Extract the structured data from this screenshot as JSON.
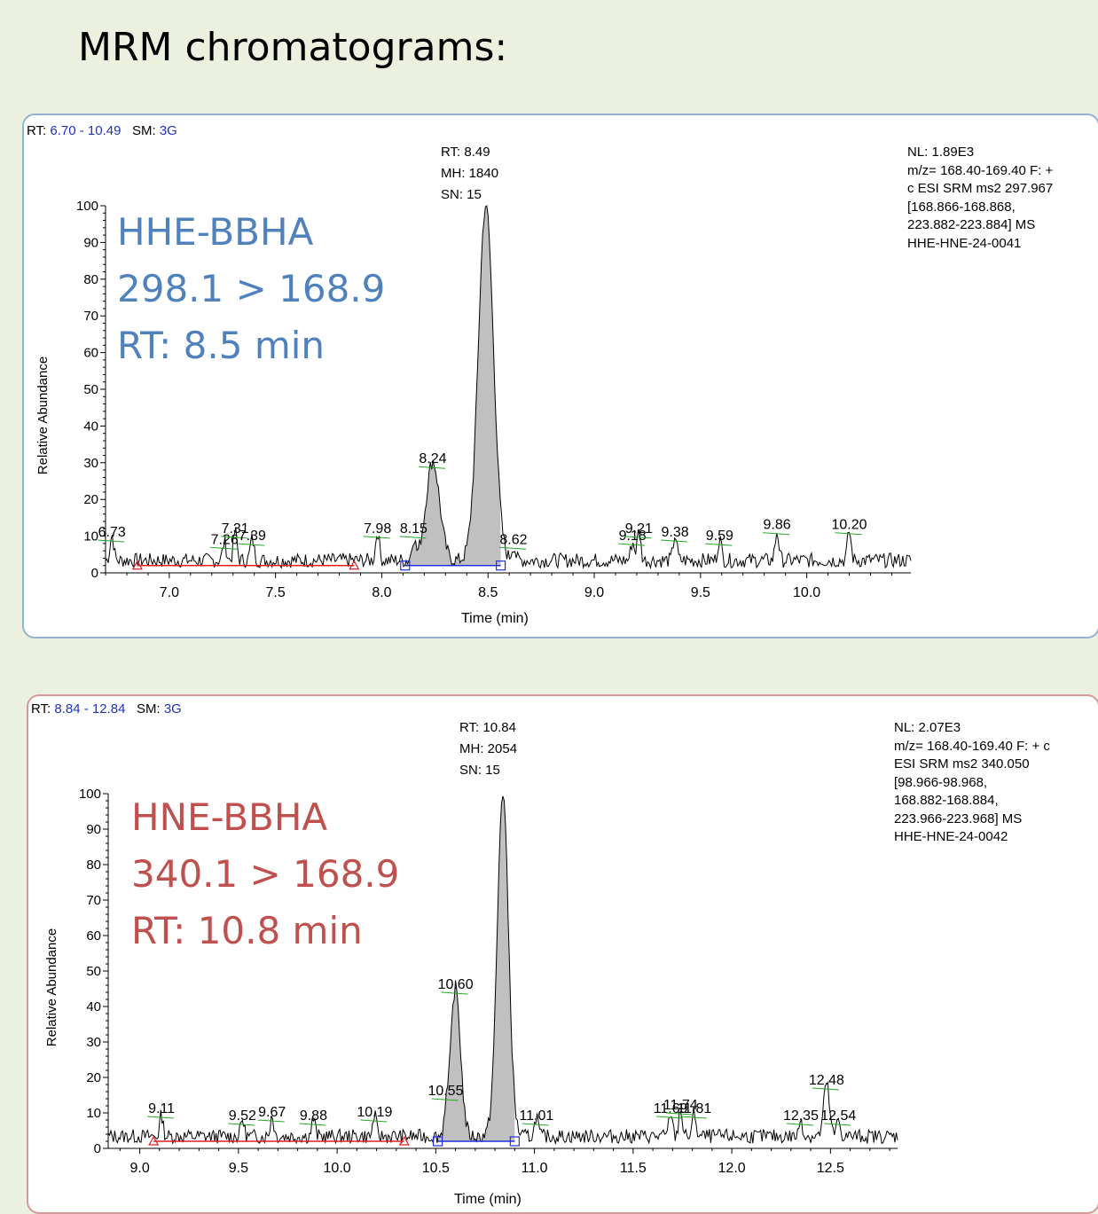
{
  "slide": {
    "title": "MRM chromatograms:"
  },
  "chart_data": [
    {
      "type": "line",
      "header": {
        "rt_label": "RT:",
        "rt_range": "6.70 - 10.49",
        "sm_label": "SM:",
        "sm_value": "3G"
      },
      "info_lines": [
        "NL: 1.89E3",
        "m/z= 168.40-169.40 F: +",
        "c ESI SRM ms2 297.967",
        "[168.866-168.868,",
        "223.882-223.884]  MS",
        "HHE-HNE-24-0041"
      ],
      "overlay_lines": [
        "HHE-BBHA",
        "298.1 > 168.9",
        "RT: 8.5 min"
      ],
      "apex_lines": [
        "RT: 8.49",
        "MH: 1840",
        "SN: 15"
      ],
      "xlabel": "Time (min)",
      "ylabel": "Relative Abundance",
      "xlim": [
        6.7,
        10.49
      ],
      "ylim": [
        0,
        100
      ],
      "x_ticks": [
        "7.0",
        "7.5",
        "8.0",
        "8.5",
        "9.0",
        "9.5",
        "10.0"
      ],
      "y_ticks": [
        "0",
        "10",
        "20",
        "30",
        "40",
        "50",
        "60",
        "70",
        "80",
        "90",
        "100"
      ],
      "peaks": [
        {
          "rt": 8.24,
          "height": 27,
          "width": 0.045
        },
        {
          "rt": 8.49,
          "height": 97,
          "width": 0.05
        }
      ],
      "shaded_range": [
        8.11,
        8.56
      ],
      "baseline_noise": 4,
      "noise_bumps": [
        {
          "rt": 6.73,
          "h": 7
        },
        {
          "rt": 7.26,
          "h": 5
        },
        {
          "rt": 7.31,
          "h": 8
        },
        {
          "rt": 7.39,
          "h": 6
        },
        {
          "rt": 7.98,
          "h": 8
        },
        {
          "rt": 8.15,
          "h": 6
        },
        {
          "rt": 8.62,
          "h": 4
        },
        {
          "rt": 9.18,
          "h": 5
        },
        {
          "rt": 9.21,
          "h": 8
        },
        {
          "rt": 9.38,
          "h": 7
        },
        {
          "rt": 9.59,
          "h": 6
        },
        {
          "rt": 9.86,
          "h": 8
        },
        {
          "rt": 10.2,
          "h": 8
        }
      ],
      "peak_labels": [
        {
          "rt": 6.73,
          "text": "6.73",
          "h": 7
        },
        {
          "rt": 7.26,
          "text": "7.26",
          "h": 5
        },
        {
          "rt": 7.31,
          "text": "7.31",
          "h": 8
        },
        {
          "rt": 7.39,
          "text": "7.39",
          "h": 6
        },
        {
          "rt": 7.98,
          "text": "7.98",
          "h": 8
        },
        {
          "rt": 8.15,
          "text": "8.15",
          "h": 8
        },
        {
          "rt": 8.24,
          "text": "8.24",
          "h": 27
        },
        {
          "rt": 8.62,
          "text": "8.62",
          "h": 5
        },
        {
          "rt": 9.18,
          "text": "9.18",
          "h": 6
        },
        {
          "rt": 9.21,
          "text": "9.21",
          "h": 8
        },
        {
          "rt": 9.38,
          "text": "9.38",
          "h": 7
        },
        {
          "rt": 9.59,
          "text": "9.59",
          "h": 6
        },
        {
          "rt": 9.86,
          "text": "9.86",
          "h": 9
        },
        {
          "rt": 10.2,
          "text": "10.20",
          "h": 9
        }
      ],
      "red_baseline": [
        6.85,
        7.87
      ],
      "blue_baseline": [
        8.11,
        8.56
      ],
      "colors": {
        "trace": "#000000",
        "fill": "#c0c0c0",
        "baseline_red": "#e02020",
        "baseline_blue": "#2030e0",
        "label_tick": "#22aa22"
      }
    },
    {
      "type": "line",
      "header": {
        "rt_label": "RT:",
        "rt_range": "8.84 - 12.84",
        "sm_label": "SM:",
        "sm_value": "3G"
      },
      "info_lines": [
        "NL: 2.07E3",
        "m/z= 168.40-169.40 F: + c",
        "ESI SRM ms2 340.050",
        "[98.966-98.968,",
        "168.882-168.884,",
        "223.966-223.968]  MS",
        "HHE-HNE-24-0042"
      ],
      "overlay_lines": [
        "HNE-BBHA",
        "340.1 > 168.9",
        "RT: 10.8 min"
      ],
      "apex_lines": [
        "RT: 10.84",
        "MH: 2054",
        "SN: 15"
      ],
      "xlabel": "Time (min)",
      "ylabel": "Relative Abundance",
      "xlim": [
        8.84,
        12.84
      ],
      "ylim": [
        0,
        100
      ],
      "x_ticks": [
        "9.0",
        "9.5",
        "10.0",
        "10.5",
        "11.0",
        "11.5",
        "12.0",
        "12.5"
      ],
      "y_ticks": [
        "0",
        "10",
        "20",
        "30",
        "40",
        "50",
        "60",
        "70",
        "80",
        "90",
        "100"
      ],
      "peaks": [
        {
          "rt": 10.6,
          "height": 42,
          "width": 0.035
        },
        {
          "rt": 10.84,
          "height": 97,
          "width": 0.04
        },
        {
          "rt": 12.48,
          "height": 15,
          "width": 0.02
        }
      ],
      "shaded_range": [
        10.51,
        10.9
      ],
      "baseline_noise": 4,
      "noise_bumps": [
        {
          "rt": 9.11,
          "h": 6
        },
        {
          "rt": 9.52,
          "h": 5
        },
        {
          "rt": 9.67,
          "h": 6
        },
        {
          "rt": 9.88,
          "h": 5
        },
        {
          "rt": 10.19,
          "h": 6
        },
        {
          "rt": 10.55,
          "h": 5
        },
        {
          "rt": 11.01,
          "h": 6
        },
        {
          "rt": 11.69,
          "h": 7
        },
        {
          "rt": 11.74,
          "h": 8
        },
        {
          "rt": 11.81,
          "h": 7
        },
        {
          "rt": 12.35,
          "h": 5
        },
        {
          "rt": 12.54,
          "h": 5
        }
      ],
      "peak_labels": [
        {
          "rt": 9.11,
          "text": "9.11",
          "h": 7
        },
        {
          "rt": 9.52,
          "text": "9.52",
          "h": 5
        },
        {
          "rt": 9.67,
          "text": "9.67",
          "h": 6
        },
        {
          "rt": 9.88,
          "text": "9.88",
          "h": 5
        },
        {
          "rt": 10.19,
          "text": "10.19",
          "h": 6
        },
        {
          "rt": 10.55,
          "text": "10.55",
          "h": 12
        },
        {
          "rt": 10.6,
          "text": "10.60",
          "h": 42
        },
        {
          "rt": 11.01,
          "text": "11.01",
          "h": 5
        },
        {
          "rt": 11.69,
          "text": "11.69",
          "h": 7
        },
        {
          "rt": 11.74,
          "text": "11.74",
          "h": 8
        },
        {
          "rt": 11.81,
          "text": "11.81",
          "h": 7
        },
        {
          "rt": 12.35,
          "text": "12.35",
          "h": 5
        },
        {
          "rt": 12.48,
          "text": "12.48",
          "h": 15
        },
        {
          "rt": 12.54,
          "text": "12.54",
          "h": 5
        }
      ],
      "red_baseline": [
        9.07,
        10.34
      ],
      "blue_baseline": [
        10.51,
        10.9
      ],
      "colors": {
        "trace": "#000000",
        "fill": "#c0c0c0",
        "baseline_red": "#e02020",
        "baseline_blue": "#2030e0",
        "label_tick": "#22aa22"
      }
    }
  ]
}
